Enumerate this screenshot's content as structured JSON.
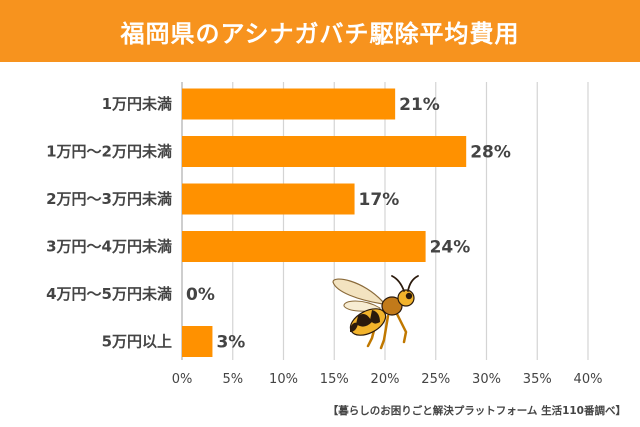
{
  "source_note": "【暮らしのお困りごと解決プラットフォーム 生活110番調べ】",
  "colors": {
    "bar": "#ff9100",
    "header": "#f7931e",
    "text": "#444444",
    "grid": "#d4d4d4"
  },
  "chart_data": {
    "type": "bar",
    "orientation": "horizontal",
    "title": "福岡県のアシナガバチ駆除平均費用",
    "categories": [
      "1万円未満",
      "1万円〜2万円未満",
      "2万円〜3万円未満",
      "3万円〜4万円未満",
      "4万円〜5万円未満",
      "5万円以上"
    ],
    "values": [
      21,
      28,
      17,
      24,
      0,
      3
    ],
    "value_labels": [
      "21%",
      "28%",
      "17%",
      "24%",
      "0%",
      "3%"
    ],
    "xlim": [
      0,
      40
    ],
    "ticks": [
      0,
      5,
      10,
      15,
      20,
      25,
      30,
      35,
      40
    ],
    "tick_labels": [
      "0%",
      "5%",
      "10%",
      "15%",
      "20%",
      "25%",
      "30%",
      "35%",
      "40%"
    ],
    "grid": true,
    "illustration": "wasp-icon"
  }
}
